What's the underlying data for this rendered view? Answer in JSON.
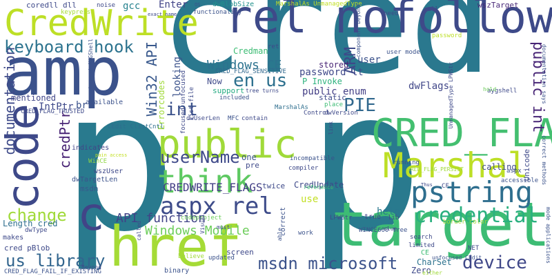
{
  "cloud": {
    "words": [
      {
        "text": "cred",
        "color": "#2a788e"
      },
      {
        "text": "p",
        "color": "#297a8e"
      },
      {
        "text": "amp",
        "color": "#3b528b"
      },
      {
        "text": "CredWrite",
        "color": "#bddf26"
      },
      {
        "text": "rel nofollow",
        "color": "#3e4a89"
      },
      {
        "text": "target",
        "color": "#3dbc74"
      },
      {
        "text": "href",
        "color": "#a5db36"
      },
      {
        "text": "code",
        "color": "#3e4989"
      },
      {
        "text": "CRED_FLAGS",
        "color": "#44bf70"
      },
      {
        "text": "public",
        "color": "#a0da39"
      },
      {
        "text": "think",
        "color": "#5ec962"
      },
      {
        "text": "Marshal",
        "color": "#bddf26"
      },
      {
        "text": "pstring",
        "color": "#2e6e8e"
      },
      {
        "text": "keyboard hook",
        "color": "#2c738e"
      },
      {
        "text": "aspx rel",
        "color": "#3e4c8a"
      },
      {
        "text": "c",
        "color": "#414487"
      },
      {
        "text": "msdn microsoft",
        "color": "#3b528b"
      },
      {
        "text": "credential",
        "color": "#2ab07f"
      },
      {
        "text": "device",
        "color": "#3f4788"
      },
      {
        "text": "userName",
        "color": "#3e4989"
      },
      {
        "text": "change",
        "color": "#a0da39"
      },
      {
        "text": "PIE",
        "color": "#31688e"
      },
      {
        "text": "Windows CE",
        "color": "#2c728e"
      },
      {
        "text": "en us",
        "color": "#2d708e"
      },
      {
        "text": "int",
        "color": "#3b528b"
      },
      {
        "text": "Windows Mobile",
        "color": "#6ccd5a"
      },
      {
        "text": "API function",
        "color": "#404387"
      },
      {
        "text": "us library",
        "color": "#32658e"
      },
      {
        "text": "documentation",
        "color": "#3e4a89"
      },
      {
        "text": "credPtr",
        "color": "#482374"
      },
      {
        "text": "Win32 API",
        "color": "#38588c"
      },
      {
        "text": "CREDWRITE_FLAGS",
        "color": "#433e85"
      },
      {
        "text": "public int",
        "color": "#482576"
      },
      {
        "text": "ARM",
        "color": "#3e4989"
      },
      {
        "text": "coredll dll",
        "color": "#3e4989"
      },
      {
        "text": "gcc",
        "color": "#26828e"
      },
      {
        "text": "Enter",
        "color": "#414487"
      },
      {
        "text": "dwBlobSize",
        "color": "#21918c"
      },
      {
        "text": "Errorcodes",
        "color": "#a0da39"
      },
      {
        "text": "looking",
        "color": "#3b528b"
      },
      {
        "text": "IntPtr",
        "color": "#3e4989"
      },
      {
        "text": "dwFlags",
        "color": "#404688"
      },
      {
        "text": "password lt",
        "color": "#3f4889"
      },
      {
        "text": "public enum",
        "color": "#433e85"
      },
      {
        "text": "stored",
        "color": "#482475"
      },
      {
        "text": "P Invoke",
        "color": "#2db27d"
      },
      {
        "text": "Credman",
        "color": "#3dbc74"
      },
      {
        "text": "mentioned",
        "color": "#404688"
      },
      {
        "text": "support",
        "color": "#25ab82"
      },
      {
        "text": "Now",
        "color": "#3e4989"
      },
      {
        "text": "user",
        "color": "#3b528b"
      },
      {
        "text": "CRED_FLAG_SENSITIVE",
        "color": "#31688e"
      },
      {
        "text": "CRED_FLAG_TRUSTED",
        "color": "#3e4989"
      },
      {
        "text": "br",
        "color": "#3b528b"
      },
      {
        "text": "available",
        "color": "#3b528b"
      },
      {
        "text": "wszTarget",
        "color": "#482878"
      },
      {
        "text": "wszUser",
        "color": "#3e4989"
      },
      {
        "text": "CEdit ClistCntl",
        "color": "#2e6e8e"
      },
      {
        "text": "indicates",
        "color": "#414487"
      },
      {
        "text": "dwTargetLen",
        "color": "#3b528b"
      },
      {
        "text": "msdn",
        "color": "#38588c"
      },
      {
        "text": "WinCE",
        "color": "#8fd744"
      },
      {
        "text": "Length cred",
        "color": "#2e6e8e"
      },
      {
        "text": "CredUpdate",
        "color": "#3e4989"
      },
      {
        "text": "twice",
        "color": "#3e4989"
      },
      {
        "text": "use",
        "color": "#c2df23"
      },
      {
        "text": "help",
        "color": "#2a788e"
      },
      {
        "text": "true",
        "color": "#404688"
      },
      {
        "text": "correct",
        "color": "#3b528b"
      },
      {
        "text": "LPWStr",
        "color": "#3e4989"
      },
      {
        "text": "work",
        "color": "#3b528b"
      },
      {
        "text": "CharSet",
        "color": "#2c728e"
      },
      {
        "text": "Zero",
        "color": "#3e4989"
      },
      {
        "text": "screen",
        "color": "#3e4989"
      },
      {
        "text": "updated",
        "color": "#3b528b"
      },
      {
        "text": "binary",
        "color": "#3b528b"
      },
      {
        "text": "makes",
        "color": "#3e4989"
      },
      {
        "text": "cred pBlob",
        "color": "#3e4989"
      },
      {
        "text": "dwType",
        "color": "#3e4989"
      },
      {
        "text": "CRED_FLAG_FAIL_IF_EXISTING",
        "color": "#3b528b"
      },
      {
        "text": "dwUserLen",
        "color": "#3e4989"
      },
      {
        "text": "MFC",
        "color": "#3b528b"
      },
      {
        "text": "codeproject",
        "color": "#6ccd5a"
      },
      {
        "text": "noise",
        "color": "#3e4989"
      },
      {
        "text": "keypress",
        "color": "#a5db36"
      },
      {
        "text": "need",
        "color": "#3e4989"
      },
      {
        "text": "call",
        "color": "#3e4989"
      },
      {
        "text": "MarshalAs UnmanagedType",
        "color": "#c2df23"
      },
      {
        "text": "functionality",
        "color": "#3b528b"
      },
      {
        "text": "static",
        "color": "#3e4989"
      },
      {
        "text": "place",
        "color": "#3dbc74"
      },
      {
        "text": "dwVersion",
        "color": "#3e4989"
      },
      {
        "text": "MarshalAs",
        "color": "#2e6e8e"
      },
      {
        "text": "included",
        "color": "#3b528b"
      },
      {
        "text": "contain",
        "color": "#3e4989"
      },
      {
        "text": "tree turns",
        "color": "#3e4989"
      },
      {
        "text": "aygshell",
        "color": "#3e4989"
      },
      {
        "text": "hold",
        "color": "#6ccd5a"
      },
      {
        "text": "Unicode",
        "color": "#3e4989"
      },
      {
        "text": "calling",
        "color": "#3e4989"
      },
      {
        "text": "running",
        "color": "#3b528b"
      },
      {
        "text": "CRED_FLAG_PERSIST",
        "color": "#a0da39"
      },
      {
        "text": "user mode",
        "color": "#3b528b"
      },
      {
        "text": "password",
        "color": "#bddf26"
      },
      {
        "text": "ret",
        "color": "#3e4989"
      },
      {
        "text": "one",
        "color": "#3b528b"
      },
      {
        "text": "pre",
        "color": "#3e4989"
      },
      {
        "text": "incompatible",
        "color": "#3b528b"
      },
      {
        "text": "compiler",
        "color": "#3e4989"
      },
      {
        "text": "reference",
        "color": "#3dbc74"
      },
      {
        "text": "WINCE600 tree",
        "color": "#3b528b"
      },
      {
        "text": "limited",
        "color": "#3e4989"
      },
      {
        "text": "search",
        "color": "#3e4989"
      },
      {
        "text": "NET",
        "color": "#3e4989"
      },
      {
        "text": "CF",
        "color": "#3e4989"
      },
      {
        "text": "aspx",
        "color": "#3b528b"
      },
      {
        "text": "lib",
        "color": "#3e4989"
      },
      {
        "text": "believe",
        "color": "#a0da39"
      },
      {
        "text": "must",
        "color": "#3e4989"
      },
      {
        "text": "called",
        "color": "#3e4989"
      },
      {
        "text": "Visual",
        "color": "#3e4989"
      },
      {
        "text": "correct methods",
        "color": "#3b528b"
      },
      {
        "text": "documentation says",
        "color": "#3b528b"
      },
      {
        "text": "exact name",
        "color": "#3e4989"
      },
      {
        "text": "beyond AYGShell",
        "color": "#3b528b"
      },
      {
        "text": "focused unfocused",
        "color": "#3e4989"
      },
      {
        "text": "list file",
        "color": "#3e4989"
      },
      {
        "text": "component beyond",
        "color": "#3b528b"
      },
      {
        "text": "UnmanagedType LPWStr",
        "color": "#3e4989"
      },
      {
        "text": "unfocused CEdit",
        "color": "#3b528b"
      },
      {
        "text": "border color",
        "color": "#a0da39"
      },
      {
        "text": "accessible",
        "color": "#3b528b"
      },
      {
        "text": "Control",
        "color": "#3e4989"
      },
      {
        "text": "link",
        "color": "#3e4989"
      },
      {
        "text": "clue",
        "color": "#3e4989"
      },
      {
        "text": "able",
        "color": "#3b528b"
      },
      {
        "text": "either",
        "color": "#a0da39"
      },
      {
        "text": "mode applications",
        "color": "#3b528b"
      },
      {
        "text": "pain access",
        "color": "#c2df23"
      },
      {
        "text": "Beyond",
        "color": "#3e4989"
      },
      {
        "text": "CE",
        "color": "#3dbc74"
      },
      {
        "text": "Thus",
        "color": "#3e4989"
      },
      {
        "text": "OS",
        "color": "#3b528b"
      }
    ]
  }
}
